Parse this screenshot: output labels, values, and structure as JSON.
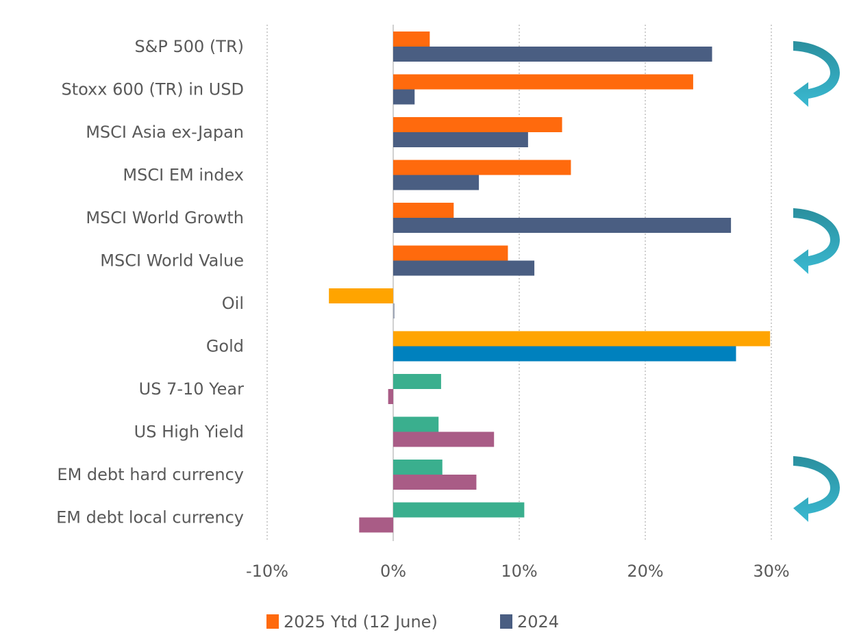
{
  "chart_data": {
    "type": "bar",
    "orientation": "horizontal",
    "title": "",
    "xlabel": "",
    "ylabel": "",
    "xlim": [
      -10,
      30
    ],
    "x_ticks": [
      "-10%",
      "0%",
      "10%",
      "20%",
      "30%"
    ],
    "x_tick_values": [
      -10,
      0,
      10,
      20,
      30
    ],
    "grid": "vertical dotted",
    "categories": [
      "S&P 500 (TR)",
      "Stoxx 600 (TR) in USD",
      "MSCI Asia ex-Japan",
      "MSCI EM index",
      "MSCI World Growth",
      "MSCI World Value",
      "Oil",
      "Gold",
      "US 7-10 Year",
      "US High Yield",
      "EM debt hard currency",
      "EM debt local currency"
    ],
    "series": [
      {
        "name": "2025 Ytd (12 June)",
        "values": [
          2.9,
          23.8,
          13.4,
          14.1,
          4.8,
          9.1,
          -5.1,
          29.9,
          3.8,
          3.6,
          3.9,
          10.4
        ],
        "colors": [
          "#ff6a0d",
          "#ff6a0d",
          "#ff6a0d",
          "#ff6a0d",
          "#ff6a0d",
          "#ff6a0d",
          "#ffa400",
          "#ffa400",
          "#3aaf8e",
          "#3aaf8e",
          "#3aaf8e",
          "#3aaf8e"
        ]
      },
      {
        "name": "2024",
        "values": [
          25.3,
          1.7,
          10.7,
          6.8,
          26.8,
          11.2,
          0.1,
          27.2,
          -0.4,
          8.0,
          6.6,
          -2.7
        ],
        "colors": [
          "#4a5e82",
          "#4a5e82",
          "#4a5e82",
          "#4a5e82",
          "#4a5e82",
          "#4a5e82",
          "#a0a8b8",
          "#0081be",
          "#a95c86",
          "#a95c86",
          "#a95c86",
          "#a95c86"
        ]
      }
    ],
    "legend": {
      "position": "bottom-center",
      "items": [
        {
          "label": "2025 Ytd (12 June)",
          "color": "#ff6a0d"
        },
        {
          "label": "2024",
          "color": "#4a5e82"
        }
      ]
    },
    "annotations": [
      {
        "type": "curved-arrow",
        "spans": [
          "S&P 500 (TR)",
          "Stoxx 600 (TR) in USD"
        ],
        "color": "#2fa3b5"
      },
      {
        "type": "curved-arrow",
        "spans": [
          "MSCI World Growth",
          "MSCI World Value"
        ],
        "color": "#2fa3b5"
      },
      {
        "type": "curved-arrow",
        "spans": [
          "EM debt hard currency",
          "EM debt local currency"
        ],
        "color": "#2fa3b5"
      }
    ]
  }
}
